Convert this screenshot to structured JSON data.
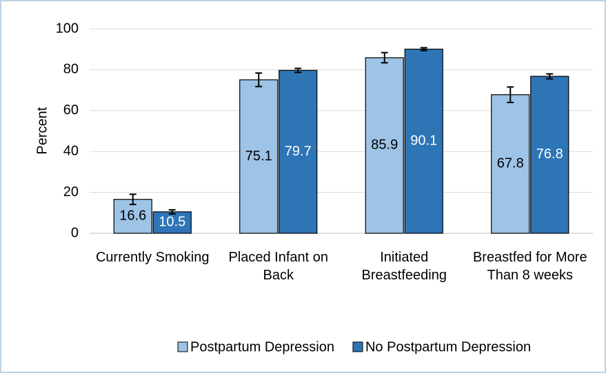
{
  "chart_data": {
    "type": "bar",
    "y_label": "Percent",
    "categories": [
      "Currently Smoking",
      "Placed Infant on Back",
      "Initiated Breastfeeding",
      "Breastfed for More Than 8 weeks"
    ],
    "series": [
      {
        "name": "Postpartum Depression",
        "color": "#9dc3e6",
        "label_color": "#000000",
        "values": [
          16.6,
          75.1,
          85.9,
          67.8
        ],
        "errors": [
          2.5,
          3.3,
          2.5,
          3.8
        ]
      },
      {
        "name": "No Postpartum Depression",
        "color": "#2e75b6",
        "label_color": "#ffffff",
        "values": [
          10.5,
          79.7,
          90.1,
          76.8
        ],
        "errors": [
          1,
          1,
          0.7,
          1.2
        ]
      }
    ],
    "ylim": [
      0,
      100
    ],
    "yticks": [
      0,
      20,
      40,
      60,
      80,
      100
    ],
    "grid": true,
    "legend": "bottom"
  }
}
